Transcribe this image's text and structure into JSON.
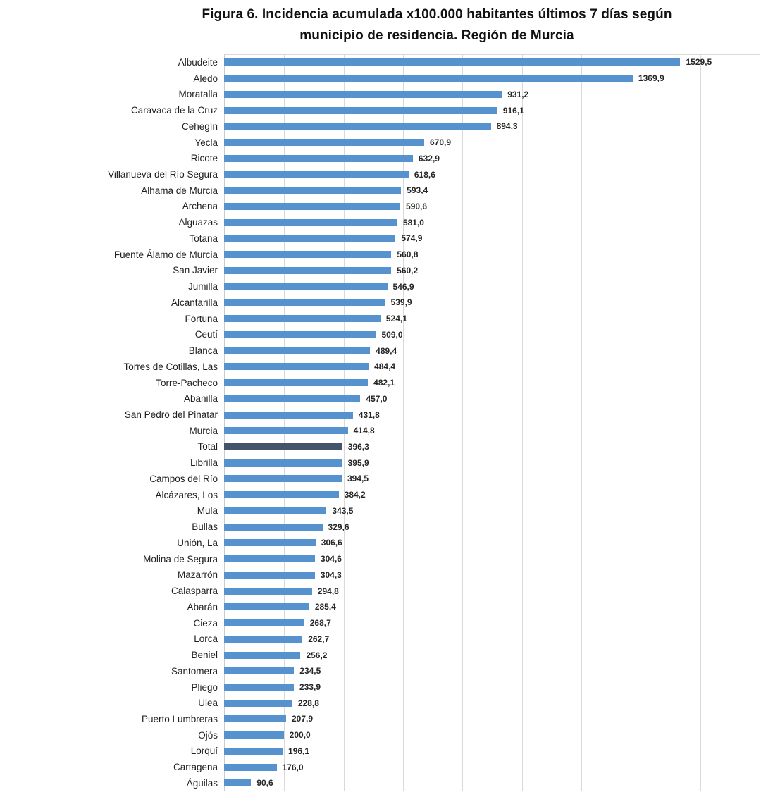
{
  "title": {
    "line1": "Figura 6. Incidencia acumulada x100.000 habitantes últimos 7 días según",
    "line2": "municipio de residencia. Región de Murcia"
  },
  "chart_data": {
    "type": "bar",
    "orientation": "horizontal",
    "title": "Figura 6. Incidencia acumulada x100.000 habitantes últimos 7 días según municipio de residencia. Región de Murcia",
    "xlabel": "",
    "ylabel": "",
    "xlim": [
      0,
      1800
    ],
    "grid": true,
    "grid_interval": 200,
    "legend": "none",
    "sort": "descending",
    "bar_color": "#5592ce",
    "highlight_color": "#44546a",
    "gridline_color": "#d9d9d9",
    "highlight_category": "Total",
    "categories": [
      "Albudeite",
      "Aledo",
      "Moratalla",
      "Caravaca de la Cruz",
      "Cehegín",
      "Yecla",
      "Ricote",
      "Villanueva del Río Segura",
      "Alhama de Murcia",
      "Archena",
      "Alguazas",
      "Totana",
      "Fuente Álamo de Murcia",
      "San Javier",
      "Jumilla",
      "Alcantarilla",
      "Fortuna",
      "Ceutí",
      "Blanca",
      "Torres de Cotillas, Las",
      "Torre-Pacheco",
      "Abanilla",
      "San Pedro del Pinatar",
      "Murcia",
      "Total",
      "Librilla",
      "Campos del Río",
      "Alcázares, Los",
      "Mula",
      "Bullas",
      "Unión, La",
      "Molina de Segura",
      "Mazarrón",
      "Calasparra",
      "Abarán",
      "Cieza",
      "Lorca",
      "Beniel",
      "Santomera",
      "Pliego",
      "Ulea",
      "Puerto Lumbreras",
      "Ojós",
      "Lorquí",
      "Cartagena",
      "Águilas"
    ],
    "values": [
      1529.5,
      1369.9,
      931.2,
      916.1,
      894.3,
      670.9,
      632.9,
      618.6,
      593.4,
      590.6,
      581.0,
      574.9,
      560.8,
      560.2,
      546.9,
      539.9,
      524.1,
      509.0,
      489.4,
      484.4,
      482.1,
      457.0,
      431.8,
      414.8,
      396.3,
      395.9,
      394.5,
      384.2,
      343.5,
      329.6,
      306.6,
      304.6,
      304.3,
      294.8,
      285.4,
      268.7,
      262.7,
      256.2,
      234.5,
      233.9,
      228.8,
      207.9,
      200.0,
      196.1,
      176.0,
      90.6
    ],
    "values_display": [
      "1529,5",
      "1369,9",
      "931,2",
      "916,1",
      "894,3",
      "670,9",
      "632,9",
      "618,6",
      "593,4",
      "590,6",
      "581,0",
      "574,9",
      "560,8",
      "560,2",
      "546,9",
      "539,9",
      "524,1",
      "509,0",
      "489,4",
      "484,4",
      "482,1",
      "457,0",
      "431,8",
      "414,8",
      "396,3",
      "395,9",
      "394,5",
      "384,2",
      "343,5",
      "329,6",
      "306,6",
      "304,6",
      "304,3",
      "294,8",
      "285,4",
      "268,7",
      "262,7",
      "256,2",
      "234,5",
      "233,9",
      "228,8",
      "207,9",
      "200,0",
      "196,1",
      "176,0",
      "90,6"
    ]
  }
}
